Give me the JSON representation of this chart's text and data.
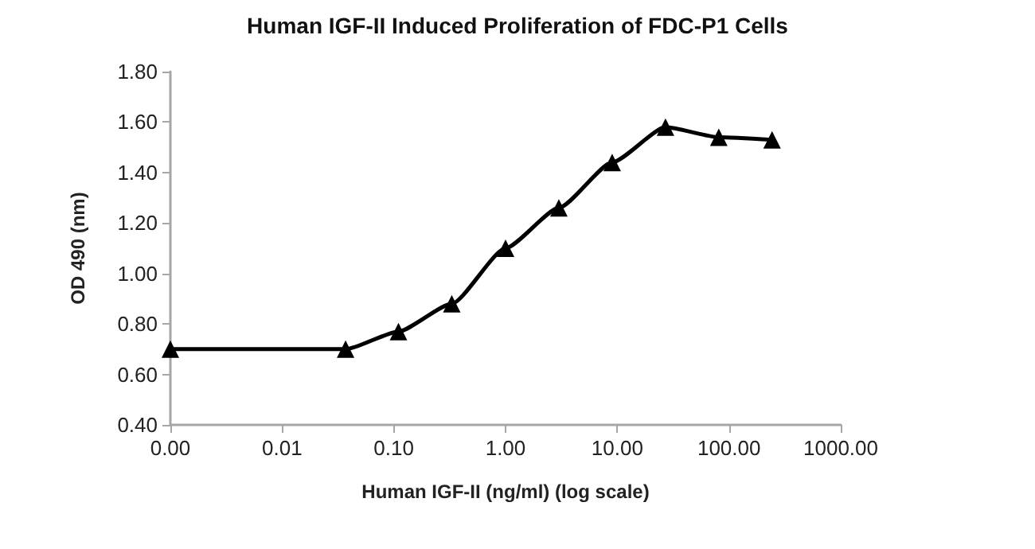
{
  "chart_data": {
    "type": "line",
    "title": "Human IGF-II Induced Proliferation of FDC-P1 Cells",
    "xlabel": "Human IGF-II (ng/ml) (log scale)",
    "ylabel": "OD 490 (nm)",
    "log": "x",
    "marker": "triangle",
    "line_style": "solid",
    "xlim": [
      0.001,
      1000
    ],
    "xticks": [
      {
        "value": 0.001,
        "label": "0.00"
      },
      {
        "value": 0.01,
        "label": "0.01"
      },
      {
        "value": 0.1,
        "label": "0.10"
      },
      {
        "value": 1,
        "label": "1.00"
      },
      {
        "value": 10,
        "label": "10.00"
      },
      {
        "value": 100,
        "label": "100.00"
      },
      {
        "value": 1000,
        "label": "1000.00"
      }
    ],
    "ylim": [
      0.4,
      1.8
    ],
    "yticks": [
      {
        "value": 0.4,
        "label": "0.40"
      },
      {
        "value": 0.6,
        "label": "0.60"
      },
      {
        "value": 0.8,
        "label": "0.80"
      },
      {
        "value": 1.0,
        "label": "1.00"
      },
      {
        "value": 1.2,
        "label": "1.20"
      },
      {
        "value": 1.4,
        "label": "1.40"
      },
      {
        "value": 1.6,
        "label": "1.60"
      },
      {
        "value": 1.8,
        "label": "1.80"
      }
    ],
    "x": [
      0.001,
      0.037,
      0.11,
      0.33,
      1,
      3,
      9,
      27,
      81,
      243
    ],
    "series": [
      {
        "color": "#000000",
        "values": [
          0.7,
          0.7,
          0.77,
          0.88,
          1.1,
          1.26,
          1.44,
          1.58,
          1.54,
          1.53
        ]
      }
    ]
  }
}
